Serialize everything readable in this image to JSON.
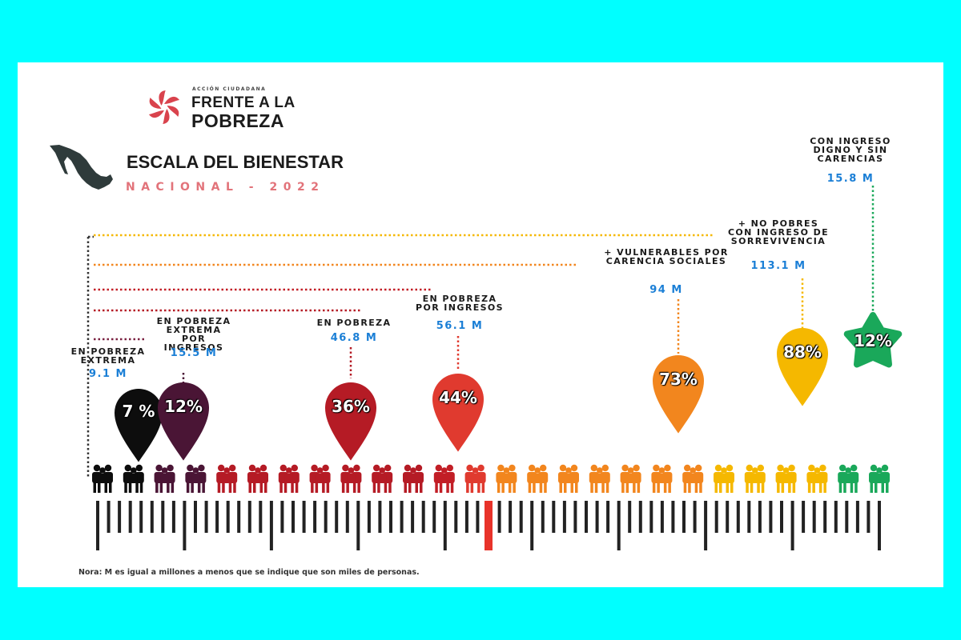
{
  "logo": {
    "tagline": "ACCIÓN CIUDADANA",
    "line1": "FRENTE A LA",
    "line2": "POBREZA",
    "icon": "flower-logo-icon",
    "color": "#d9434d"
  },
  "title": "ESCALA DEL BIENESTAR",
  "subtitle": "NACIONAL - 2022",
  "map_icon": "mexico-map-icon",
  "categories": [
    {
      "id": "pobreza-extrema",
      "label": "EN POBREZA\nEXTREMA",
      "value": "9.1 M",
      "percent": "7 %",
      "color": "#0d0d0d"
    },
    {
      "id": "pobreza-extrema-ingresos",
      "label": "EN POBREZA\nEXTREMA POR\nINGRESOS",
      "value": "15.5 M",
      "percent": "12%",
      "color": "#4a1535"
    },
    {
      "id": "pobreza",
      "label": "EN POBREZA",
      "value": "46.8 M",
      "percent": "36%",
      "color": "#b51b25"
    },
    {
      "id": "pobreza-ingresos",
      "label": "EN POBREZA\nPOR INGRESOS",
      "value": "56.1 M",
      "percent": "44%",
      "color": "#e03a2f"
    },
    {
      "id": "vulnerables",
      "label": "+ VULNERABLES POR\nCARENCIA SOCIALES",
      "value": "94 M",
      "percent": "73%",
      "color": "#f2861e"
    },
    {
      "id": "no-pobres",
      "label": "+ NO POBRES\nCON INGRESO DE\nSORREVIVENCIA",
      "value": "113.1 M",
      "percent": "88%",
      "color": "#f5b800"
    },
    {
      "id": "ingreso-digno",
      "label": "CON INGRESO\nDIGNO Y SIN\nCARENCIAS",
      "value": "15.8 M",
      "percent": "12%",
      "color": "#1aa85a"
    }
  ],
  "people_colors": [
    "#0d0d0d",
    "#0d0d0d",
    "#4a1535",
    "#4a1535",
    "#b51b25",
    "#b51b25",
    "#b51b25",
    "#b51b25",
    "#b51b25",
    "#b51b25",
    "#b51b25",
    "#c21e26",
    "#e03a2f",
    "#f2861e",
    "#f2861e",
    "#f2861e",
    "#f2861e",
    "#f2861e",
    "#f2861e",
    "#f2861e",
    "#f5b800",
    "#f5b800",
    "#f5b800",
    "#f5b800",
    "#1aa85a",
    "#1aa85a"
  ],
  "highlight_color": "#e8332a",
  "note": "Nora: M es igual a millones a menos que se indique que son miles de personas."
}
